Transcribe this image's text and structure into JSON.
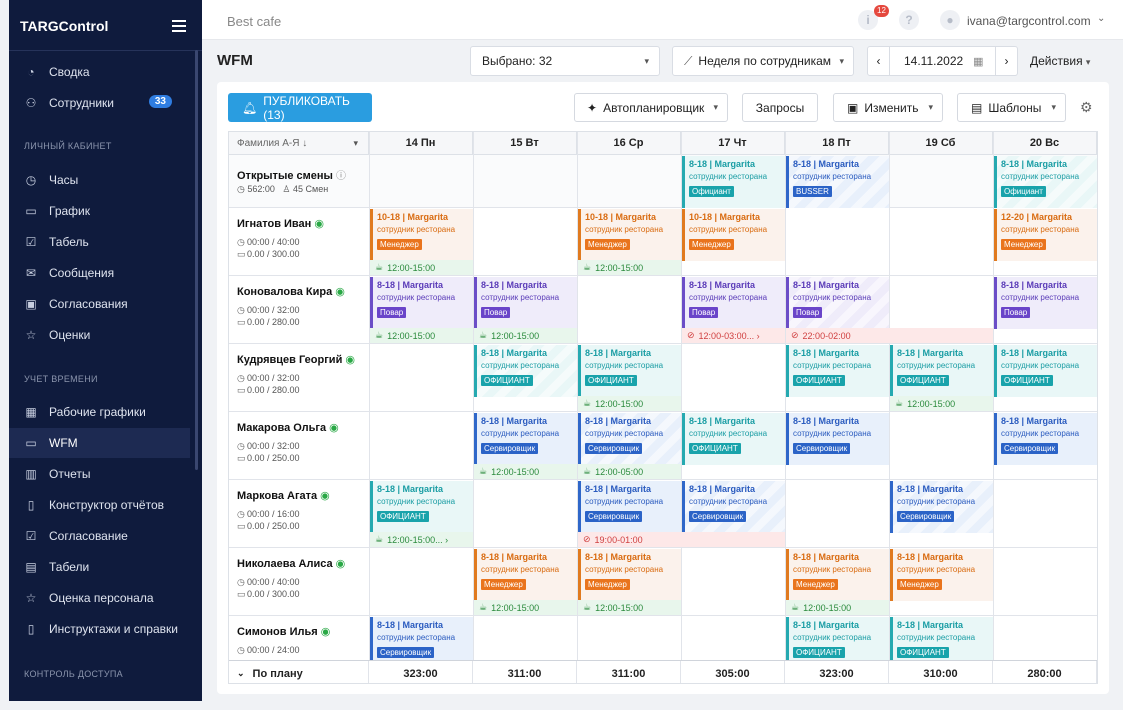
{
  "app": {
    "brand": "TARGControl"
  },
  "sidebar": {
    "items_top": [
      {
        "label": "Сводка",
        "icon": "pie-chart-icon"
      },
      {
        "label": "Сотрудники",
        "icon": "users-icon",
        "badge": "33"
      }
    ],
    "section1": "ЛИЧНЫЙ КАБИНЕТ",
    "items_personal": [
      {
        "label": "Часы",
        "icon": "clock-icon"
      },
      {
        "label": "График",
        "icon": "calendar-icon"
      },
      {
        "label": "Табель",
        "icon": "checklist-icon"
      },
      {
        "label": "Сообщения",
        "icon": "mail-icon"
      },
      {
        "label": "Согласования",
        "icon": "clipboard-icon"
      },
      {
        "label": "Оценки",
        "icon": "star-icon"
      }
    ],
    "section2": "УЧЕТ ВРЕМЕНИ",
    "items_time": [
      {
        "label": "Рабочие графики",
        "icon": "calendar-grid-icon"
      },
      {
        "label": "WFM",
        "icon": "calendar-icon",
        "active": true
      },
      {
        "label": "Отчеты",
        "icon": "bar-chart-icon"
      },
      {
        "label": "Конструктор отчётов",
        "icon": "document-icon"
      },
      {
        "label": "Согласование",
        "icon": "clipboard-check-icon"
      },
      {
        "label": "Табели",
        "icon": "table-icon"
      },
      {
        "label": "Оценка персонала",
        "icon": "star-icon"
      },
      {
        "label": "Инструктажи и справки",
        "icon": "file-icon"
      }
    ],
    "section3": "КОНТРОЛЬ ДОСТУПА"
  },
  "topbar": {
    "cafe": "Best cafe",
    "notifications": "12",
    "user": "ivana@targcontrol.com"
  },
  "page": {
    "title": "WFM"
  },
  "controls": {
    "selected": "Выбрано: 32",
    "view": "Неделя по сотрудникам",
    "date": "14.11.2022",
    "actions": "Действия"
  },
  "toolbar": {
    "publish": "ПУБЛИКОВАТЬ (13)",
    "autoplanner": "Автопланировщик",
    "requests": "Запросы",
    "edit": "Изменить",
    "templates": "Шаблоны"
  },
  "grid": {
    "sort_label": "Фамилия А-Я ↓",
    "days": [
      "14 Пн",
      "15 Вт",
      "16 Ср",
      "17 Чт",
      "18 Пт",
      "19 Сб",
      "20 Вс"
    ],
    "open_shifts": {
      "title": "Открытые смены",
      "hours": "562:00",
      "shifts": "45 Смен"
    },
    "employees": [
      {
        "name": "Игнатов Иван",
        "hours": "00:00 / 40:00",
        "money": "0.00 / 300.00"
      },
      {
        "name": "Коновалова Кира",
        "hours": "00:00 / 32:00",
        "money": "0.00 / 280.00"
      },
      {
        "name": "Кудрявцев Георгий",
        "hours": "00:00 / 32:00",
        "money": "0.00 / 280.00"
      },
      {
        "name": "Макарова Ольга",
        "hours": "00:00 / 32:00",
        "money": "0.00 / 250.00"
      },
      {
        "name": "Маркова Агата",
        "hours": "00:00 / 16:00",
        "money": "0.00 / 250.00"
      },
      {
        "name": "Николаева Алиса",
        "hours": "00:00 / 40:00",
        "money": "0.00 / 300.00"
      },
      {
        "name": "Симонов Илья",
        "hours": "00:00 / 24:00",
        "money": ""
      }
    ],
    "shift_sub": "сотрудник ресторана",
    "shifts": [
      {
        "row": -1,
        "col": 3,
        "time": "8-18 | Margarita",
        "role": "Официант",
        "color": "teal"
      },
      {
        "row": -1,
        "col": 4,
        "time": "8-18 | Margarita",
        "role": "BUSSER",
        "color": "blue",
        "stripe": true
      },
      {
        "row": -1,
        "col": 6,
        "time": "8-18 | Margarita",
        "role": "Официант",
        "color": "teal",
        "stripe": true
      },
      {
        "row": 0,
        "col": 0,
        "time": "10-18 | Margarita",
        "role": "Менеджер",
        "color": "orange"
      },
      {
        "row": 0,
        "col": 2,
        "time": "10-18 | Margarita",
        "role": "Менеджер",
        "color": "orange"
      },
      {
        "row": 0,
        "col": 3,
        "time": "10-18 | Margarita",
        "role": "Менеджер",
        "color": "orange"
      },
      {
        "row": 0,
        "col": 6,
        "time": "12-20 | Margarita",
        "role": "Менеджер",
        "color": "orange"
      },
      {
        "row": 1,
        "col": 0,
        "time": "8-18 | Margarita",
        "role": "Повар",
        "color": "purple"
      },
      {
        "row": 1,
        "col": 1,
        "time": "8-18 | Margarita",
        "role": "Повар",
        "color": "purple"
      },
      {
        "row": 1,
        "col": 3,
        "time": "8-18 | Margarita",
        "role": "Повар",
        "color": "purple"
      },
      {
        "row": 1,
        "col": 4,
        "time": "8-18 | Margarita",
        "role": "Повар",
        "color": "purple",
        "stripe": true
      },
      {
        "row": 1,
        "col": 6,
        "time": "8-18 | Margarita",
        "role": "Повар",
        "color": "purple"
      },
      {
        "row": 2,
        "col": 1,
        "time": "8-18 | Margarita",
        "role": "ОФИЦИАНТ",
        "color": "teal",
        "stripe": true
      },
      {
        "row": 2,
        "col": 2,
        "time": "8-18 | Margarita",
        "role": "ОФИЦИАНТ",
        "color": "teal"
      },
      {
        "row": 2,
        "col": 4,
        "time": "8-18 | Margarita",
        "role": "ОФИЦИАНТ",
        "color": "teal"
      },
      {
        "row": 2,
        "col": 5,
        "time": "8-18 | Margarita",
        "role": "ОФИЦИАНТ",
        "color": "teal"
      },
      {
        "row": 2,
        "col": 6,
        "time": "8-18 | Margarita",
        "role": "ОФИЦИАНТ",
        "color": "teal"
      },
      {
        "row": 3,
        "col": 1,
        "time": "8-18 | Margarita",
        "role": "Сервировщик",
        "color": "blue"
      },
      {
        "row": 3,
        "col": 2,
        "time": "8-18 | Margarita",
        "role": "Сервировщик",
        "color": "blue",
        "stripe": true
      },
      {
        "row": 3,
        "col": 3,
        "time": "8-18 | Margarita",
        "role": "ОФИЦИАНТ",
        "color": "teal"
      },
      {
        "row": 3,
        "col": 4,
        "time": "8-18 | Margarita",
        "role": "Сервировщик",
        "color": "blue"
      },
      {
        "row": 3,
        "col": 6,
        "time": "8-18 | Margarita",
        "role": "Сервировщик",
        "color": "blue"
      },
      {
        "row": 4,
        "col": 0,
        "time": "8-18 | Margarita",
        "role": "ОФИЦИАНТ",
        "color": "teal"
      },
      {
        "row": 4,
        "col": 2,
        "time": "8-18 | Margarita",
        "role": "Сервировщик",
        "color": "blue"
      },
      {
        "row": 4,
        "col": 3,
        "time": "8-18 | Margarita",
        "role": "Сервировщик",
        "color": "blue",
        "stripe": true
      },
      {
        "row": 4,
        "col": 5,
        "time": "8-18 | Margarita",
        "role": "Сервировщик",
        "color": "blue",
        "stripe": true
      },
      {
        "row": 5,
        "col": 1,
        "time": "8-18 | Margarita",
        "role": "Менеджер",
        "color": "orange"
      },
      {
        "row": 5,
        "col": 2,
        "time": "8-18 | Margarita",
        "role": "Менеджер",
        "color": "orange"
      },
      {
        "row": 5,
        "col": 4,
        "time": "8-18 | Margarita",
        "role": "Менеджер",
        "color": "orange"
      },
      {
        "row": 5,
        "col": 5,
        "time": "8-18 | Margarita",
        "role": "Менеджер",
        "color": "orange"
      },
      {
        "row": 6,
        "col": 0,
        "time": "8-18 | Margarita",
        "role": "Сервировщик",
        "color": "blue"
      },
      {
        "row": 6,
        "col": 4,
        "time": "8-18 | Margarita",
        "role": "ОФИЦИАНТ",
        "color": "teal"
      },
      {
        "row": 6,
        "col": 5,
        "time": "8-18 | Margarita",
        "role": "ОФИЦИАНТ",
        "color": "teal"
      }
    ],
    "tags": [
      {
        "row": 0,
        "col": 0,
        "span": 1,
        "text": "12:00-15:00",
        "kind": "ok"
      },
      {
        "row": 0,
        "col": 2,
        "span": 1,
        "text": "12:00-15:00",
        "kind": "ok"
      },
      {
        "row": 1,
        "col": 0,
        "span": 1,
        "text": "12:00-15:00",
        "kind": "ok"
      },
      {
        "row": 1,
        "col": 1,
        "span": 1,
        "text": "12:00-15:00",
        "kind": "ok"
      },
      {
        "row": 1,
        "col": 3,
        "span": 1,
        "text": "12:00-03:00...  ›",
        "kind": "bad"
      },
      {
        "row": 1,
        "col": 4,
        "span": 2,
        "text": "22:00-02:00",
        "kind": "bad"
      },
      {
        "row": 2,
        "col": 2,
        "span": 1,
        "text": "12:00-15:00",
        "kind": "ok"
      },
      {
        "row": 2,
        "col": 5,
        "span": 1,
        "text": "12:00-15:00",
        "kind": "ok"
      },
      {
        "row": 3,
        "col": 1,
        "span": 1,
        "text": "12:00-15:00",
        "kind": "ok"
      },
      {
        "row": 3,
        "col": 2,
        "span": 1,
        "text": "12:00-05:00",
        "kind": "ok"
      },
      {
        "row": 4,
        "col": 0,
        "span": 1,
        "text": "12:00-15:00...  ›",
        "kind": "ok"
      },
      {
        "row": 4,
        "col": 2,
        "span": 2,
        "text": "19:00-01:00",
        "kind": "bad"
      },
      {
        "row": 5,
        "col": 1,
        "span": 1,
        "text": "12:00-15:00",
        "kind": "ok"
      },
      {
        "row": 5,
        "col": 2,
        "span": 1,
        "text": "12:00-15:00",
        "kind": "ok"
      },
      {
        "row": 5,
        "col": 4,
        "span": 1,
        "text": "12:00-15:00",
        "kind": "ok"
      }
    ],
    "footer": {
      "label": "По плану",
      "totals": [
        "323:00",
        "311:00",
        "311:00",
        "305:00",
        "323:00",
        "310:00",
        "280:00"
      ]
    }
  },
  "colors": {
    "sidebar_bg": "#0f1b3d",
    "accent": "#2a9de0"
  }
}
